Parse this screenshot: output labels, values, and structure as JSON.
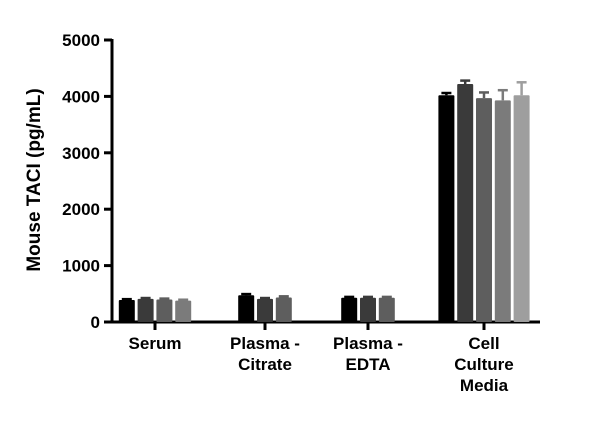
{
  "chart_data": {
    "type": "bar",
    "title": "",
    "xlabel": "",
    "ylabel": "Mouse  TACI (pg/mL)",
    "ylim": [
      0,
      5000
    ],
    "yticks": [
      0,
      1000,
      2000,
      3000,
      4000,
      5000
    ],
    "grid": false,
    "legend": "none",
    "categories": [
      {
        "lines": [
          "Serum"
        ],
        "values": [
          390,
          410,
          400,
          380
        ],
        "errors": [
          15,
          15,
          15,
          15
        ]
      },
      {
        "lines": [
          "Plasma -",
          "Citrate"
        ],
        "values": [
          475,
          410,
          435
        ],
        "errors": [
          20,
          15,
          20
        ]
      },
      {
        "lines": [
          "Plasma -",
          "EDTA"
        ],
        "values": [
          430,
          430,
          430
        ],
        "errors": [
          15,
          15,
          15
        ]
      },
      {
        "lines": [
          "Cell",
          "Culture",
          "Media"
        ],
        "values": [
          4020,
          4220,
          3970,
          3930,
          4020
        ],
        "errors": [
          40,
          60,
          100,
          180,
          230
        ]
      }
    ],
    "bar_colors": [
      "#000000",
      "#3a3a3a",
      "#5e5e5e",
      "#7b7b7b",
      "#9e9e9e"
    ]
  }
}
